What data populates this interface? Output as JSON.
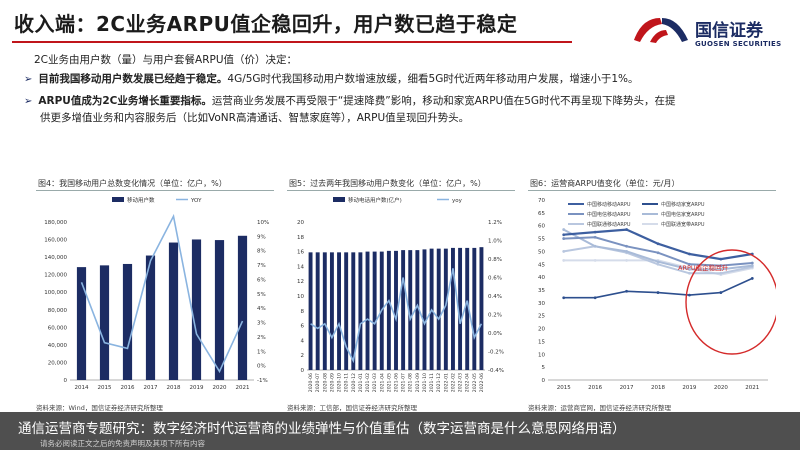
{
  "page": {
    "title": "收入端：2C业务ARPU值企稳回升，用户数已趋于稳定",
    "intro": "2C业务由用户数（量）与用户套餐ARPU值（价）决定：",
    "bullets": [
      {
        "bold": "目前我国移动用户数发展已经趋于稳定。",
        "text": "4G/5G时代我国移动用户数增速放缓，细看5G时代近两年移动用户发展，增速小于1%。",
        "cont": ""
      },
      {
        "bold": "ARPU值成为2C业务增长重要指标。",
        "text": "运营商业务发展不再受限于“提速降费”影响，移动和家宽ARPU值在5G时代不再呈现下降势头，在提",
        "cont": "供更多增值业务和内容服务后（比如VoNR高清通话、智慧家庭等），ARPU值呈现回升势头。"
      }
    ],
    "logo": {
      "cn": "国信证券",
      "en": "GUOSEN SECURITIES"
    },
    "overlay": {
      "main": "通信运营商专题研究：数字经济时代运营商的业绩弹性与价值重估（数字运营商是什么意思网络用语）",
      "sub": "请务必阅读正文之后的免责声明及其项下所有内容"
    },
    "colors": {
      "accent": "#c0151b",
      "navy": "#1c2c63",
      "bar": "#1c2c63",
      "line": "#8ab4e0"
    }
  },
  "chart_data": [
    {
      "type": "bar",
      "title": "图4：我国移动用户总数变化情况（单位：亿户，%）",
      "legend": [
        "移动用户数",
        "YOY"
      ],
      "categories": [
        "2014",
        "2015",
        "2016",
        "2017",
        "2018",
        "2019",
        "2020",
        "2021"
      ],
      "series": [
        {
          "name": "移动用户数",
          "kind": "bar",
          "axis": "left",
          "values": [
            128600,
            130600,
            132200,
            141800,
            156600,
            160100,
            159400,
            164300
          ]
        },
        {
          "name": "YOY",
          "kind": "line",
          "axis": "right",
          "values": [
            5.8,
            1.6,
            1.2,
            7.3,
            10.4,
            2.2,
            -0.4,
            3.1
          ]
        }
      ],
      "ylim_left": [
        0,
        180000
      ],
      "left_ticks": [
        "0",
        "20,000",
        "40,000",
        "60,000",
        "80,000",
        "100,000",
        "120,000",
        "140,000",
        "160,000",
        "180,000"
      ],
      "ylim_right": [
        -1,
        10
      ],
      "right_ticks": [
        "-1%",
        "0%",
        "1%",
        "2%",
        "3%",
        "4%",
        "5%",
        "6%",
        "7%",
        "8%",
        "9%",
        "10%"
      ],
      "source": "资料来源：Wind，国信证券经济研究所整理"
    },
    {
      "type": "bar",
      "title": "图5：过去两年我国移动用户数变化（单位：亿户，%）",
      "legend": [
        "移动电话用户数(亿户)",
        "yoy"
      ],
      "categories": [
        "2020-06",
        "2020-07",
        "2020-08",
        "2020-09",
        "2020-10",
        "2020-11",
        "2020-12",
        "2021-01",
        "2021-02",
        "2021-03",
        "2021-04",
        "2021-05",
        "2021-06",
        "2021-07",
        "2021-08",
        "2021-09",
        "2021-10",
        "2021-11",
        "2021-12",
        "2022-01",
        "2022-02",
        "2022-03",
        "2022-04",
        "2022-05",
        "2022-06"
      ],
      "series": [
        {
          "name": "移动电话用户数(亿户)",
          "kind": "bar",
          "axis": "left",
          "values": [
            15.9,
            15.9,
            15.9,
            15.9,
            15.9,
            15.9,
            15.9,
            15.9,
            16.0,
            16.0,
            16.0,
            16.1,
            16.1,
            16.2,
            16.2,
            16.2,
            16.3,
            16.4,
            16.4,
            16.4,
            16.5,
            16.5,
            16.5,
            16.5,
            16.6
          ]
        },
        {
          "name": "yoy",
          "kind": "line",
          "axis": "right",
          "values": [
            0.1,
            0.05,
            0.1,
            -0.05,
            0.1,
            -0.15,
            -0.3,
            0.1,
            0.15,
            0.1,
            0.25,
            0.35,
            0.15,
            0.6,
            0.15,
            0.3,
            0.1,
            0.25,
            0.15,
            0.3,
            0.7,
            0.1,
            0.35,
            -0.05,
            0.1
          ]
        }
      ],
      "ylim_left": [
        0,
        20
      ],
      "left_ticks": [
        "0",
        "2",
        "4",
        "6",
        "8",
        "10",
        "12",
        "14",
        "16",
        "18",
        "20"
      ],
      "ylim_right": [
        -0.4,
        1.2
      ],
      "right_ticks": [
        "-0.4%",
        "-0.2%",
        "0.0%",
        "0.2%",
        "0.4%",
        "0.6%",
        "0.8%",
        "1.0%",
        "1.2%"
      ],
      "source": "资料来源：工信部，国信证券经济研究所整理"
    },
    {
      "type": "line",
      "title": "图6：运营商ARPU值变化（单位：元/月）",
      "x": [
        "2015",
        "2016",
        "2017",
        "2018",
        "2019",
        "2020",
        "2021"
      ],
      "series": [
        {
          "name": "中国移动移动ARPU",
          "color": "#3d5fa0",
          "width": 2.2,
          "values": [
            56.5,
            57.5,
            58.5,
            53.0,
            49.0,
            47.0,
            49.0
          ]
        },
        {
          "name": "中国移动家宽ARPU",
          "color": "#2d4f8e",
          "width": 1.6,
          "values": [
            32.0,
            32.0,
            34.5,
            34.0,
            33.0,
            34.0,
            39.5
          ]
        },
        {
          "name": "中国电信移动ARPU",
          "color": "#7a92c0",
          "width": 2.0,
          "values": [
            55.0,
            55.5,
            52.0,
            49.5,
            45.0,
            44.5,
            45.5
          ]
        },
        {
          "name": "中国电信家宽ARPU",
          "color": "#a9bbd8",
          "width": 2.0,
          "values": [
            58.5,
            52.0,
            50.0,
            46.0,
            43.0,
            43.0,
            44.5
          ]
        },
        {
          "name": "中国联通移动ARPU",
          "color": "#b9c7df",
          "width": 2.0,
          "values": [
            50.0,
            52.0,
            49.5,
            45.0,
            41.5,
            41.5,
            44.0
          ]
        },
        {
          "name": "中国联通宽带ARPU",
          "color": "#d5dcea",
          "width": 2.0,
          "values": [
            46.5,
            46.5,
            46.5,
            46.5,
            43.5,
            41.0,
            43.5
          ]
        }
      ],
      "ylim": [
        0,
        70
      ],
      "y_ticks": [
        "0",
        "5",
        "10",
        "15",
        "20",
        "25",
        "30",
        "35",
        "40",
        "45",
        "50",
        "55",
        "60",
        "65",
        "70"
      ],
      "annotation": "ARPU值企稳回升",
      "annotation_color": "#d42a2a",
      "source": "资料来源：运营商官网，国信证券经济研究所整理"
    }
  ]
}
